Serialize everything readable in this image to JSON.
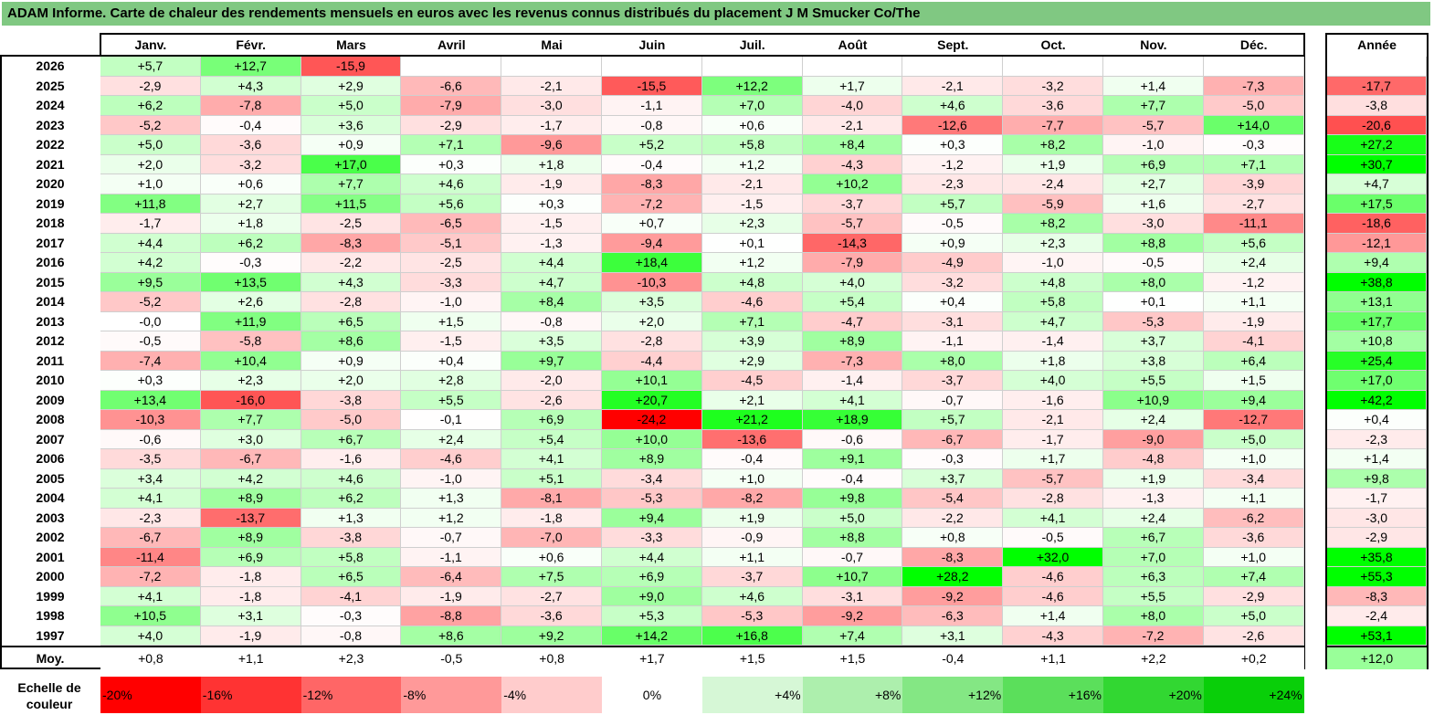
{
  "title": "ADAM Informe. Carte de chaleur des rendements mensuels en euros avec les revenus connus distribués du placement J M Smucker Co/The",
  "chart_data": {
    "type": "heatmap",
    "title": "ADAM Informe. Carte de chaleur des rendements mensuels en euros avec les revenus connus distribués du placement J M Smucker Co/The",
    "columns": [
      "Janv.",
      "Févr.",
      "Mars",
      "Avril",
      "Mai",
      "Juin",
      "Juil.",
      "Août",
      "Sept.",
      "Oct.",
      "Nov.",
      "Déc."
    ],
    "year_header": "Année",
    "rows": [
      {
        "year": "2026",
        "values": [
          "+5,7",
          "+12,7",
          "-15,9",
          "",
          "",
          "",
          "",
          "",
          "",
          "",
          "",
          ""
        ],
        "annual": ""
      },
      {
        "year": "2025",
        "values": [
          "-2,9",
          "+4,3",
          "+2,9",
          "-6,6",
          "-2,1",
          "-15,5",
          "+12,2",
          "+1,7",
          "-2,1",
          "-3,2",
          "+1,4",
          "-7,3"
        ],
        "annual": "-17,7"
      },
      {
        "year": "2024",
        "values": [
          "+6,2",
          "-7,8",
          "+5,0",
          "-7,9",
          "-3,0",
          "-1,1",
          "+7,0",
          "-4,0",
          "+4,6",
          "-3,6",
          "+7,7",
          "-5,0"
        ],
        "annual": "-3,8"
      },
      {
        "year": "2023",
        "values": [
          "-5,2",
          "-0,4",
          "+3,6",
          "-2,9",
          "-1,7",
          "-0,8",
          "+0,6",
          "-2,1",
          "-12,6",
          "-7,7",
          "-5,7",
          "+14,0"
        ],
        "annual": "-20,6"
      },
      {
        "year": "2022",
        "values": [
          "+5,0",
          "-3,6",
          "+0,9",
          "+7,1",
          "-9,6",
          "+5,2",
          "+5,8",
          "+8,4",
          "+0,3",
          "+8,2",
          "-1,0",
          "-0,3"
        ],
        "annual": "+27,2"
      },
      {
        "year": "2021",
        "values": [
          "+2,0",
          "-3,2",
          "+17,0",
          "+0,3",
          "+1,8",
          "-0,4",
          "+1,2",
          "-4,3",
          "-1,2",
          "+1,9",
          "+6,9",
          "+7,1"
        ],
        "annual": "+30,7"
      },
      {
        "year": "2020",
        "values": [
          "+1,0",
          "+0,6",
          "+7,7",
          "+4,6",
          "-1,9",
          "-8,3",
          "-2,1",
          "+10,2",
          "-2,3",
          "-2,4",
          "+2,7",
          "-3,9"
        ],
        "annual": "+4,7"
      },
      {
        "year": "2019",
        "values": [
          "+11,8",
          "+2,7",
          "+11,5",
          "+5,6",
          "+0,3",
          "-7,2",
          "-1,5",
          "-3,7",
          "+5,7",
          "-5,9",
          "+1,6",
          "-2,7"
        ],
        "annual": "+17,5"
      },
      {
        "year": "2018",
        "values": [
          "-1,7",
          "+1,8",
          "-2,5",
          "-6,5",
          "-1,5",
          "+0,7",
          "+2,3",
          "-5,7",
          "-0,5",
          "+8,2",
          "-3,0",
          "-11,1"
        ],
        "annual": "-18,6"
      },
      {
        "year": "2017",
        "values": [
          "+4,4",
          "+6,2",
          "-8,3",
          "-5,1",
          "-1,3",
          "-9,4",
          "+0,1",
          "-14,3",
          "+0,9",
          "+2,3",
          "+8,8",
          "+5,6"
        ],
        "annual": "-12,1"
      },
      {
        "year": "2016",
        "values": [
          "+4,2",
          "-0,3",
          "-2,2",
          "-2,5",
          "+4,4",
          "+18,4",
          "+1,2",
          "-7,9",
          "-4,9",
          "-1,0",
          "-0,5",
          "+2,4"
        ],
        "annual": "+9,4"
      },
      {
        "year": "2015",
        "values": [
          "+9,5",
          "+13,5",
          "+4,3",
          "-3,3",
          "+4,7",
          "-10,3",
          "+4,8",
          "+4,0",
          "-3,2",
          "+4,8",
          "+8,0",
          "-1,2"
        ],
        "annual": "+38,8"
      },
      {
        "year": "2014",
        "values": [
          "-5,2",
          "+2,6",
          "-2,8",
          "-1,0",
          "+8,4",
          "+3,5",
          "-4,6",
          "+5,4",
          "+0,4",
          "+5,8",
          "+0,1",
          "+1,1"
        ],
        "annual": "+13,1"
      },
      {
        "year": "2013",
        "values": [
          "-0,0",
          "+11,9",
          "+6,5",
          "+1,5",
          "-0,8",
          "+2,0",
          "+7,1",
          "-4,7",
          "-3,1",
          "+4,7",
          "-5,3",
          "-1,9"
        ],
        "annual": "+17,7"
      },
      {
        "year": "2012",
        "values": [
          "-0,5",
          "-5,8",
          "+8,6",
          "-1,5",
          "+3,5",
          "-2,8",
          "+3,9",
          "+8,9",
          "-1,1",
          "-1,4",
          "+3,7",
          "-4,1"
        ],
        "annual": "+10,8"
      },
      {
        "year": "2011",
        "values": [
          "-7,4",
          "+10,4",
          "+0,9",
          "+0,4",
          "+9,7",
          "-4,4",
          "+2,9",
          "-7,3",
          "+8,0",
          "+1,8",
          "+3,8",
          "+6,4"
        ],
        "annual": "+25,4"
      },
      {
        "year": "2010",
        "values": [
          "+0,3",
          "+2,3",
          "+2,0",
          "+2,8",
          "-2,0",
          "+10,1",
          "-4,5",
          "-1,4",
          "-3,7",
          "+4,0",
          "+5,5",
          "+1,5"
        ],
        "annual": "+17,0"
      },
      {
        "year": "2009",
        "values": [
          "+13,4",
          "-16,0",
          "-3,8",
          "+5,5",
          "-2,6",
          "+20,7",
          "+2,1",
          "+4,1",
          "-0,7",
          "-1,6",
          "+10,9",
          "+9,4"
        ],
        "annual": "+42,2"
      },
      {
        "year": "2008",
        "values": [
          "-10,3",
          "+7,7",
          "-5,0",
          "-0,1",
          "+6,9",
          "-24,2",
          "+21,2",
          "+18,9",
          "+5,7",
          "-2,1",
          "+2,4",
          "-12,7"
        ],
        "annual": "+0,4"
      },
      {
        "year": "2007",
        "values": [
          "-0,6",
          "+3,0",
          "+6,7",
          "+2,4",
          "+5,4",
          "+10,0",
          "-13,6",
          "-0,6",
          "-6,7",
          "-1,7",
          "-9,0",
          "+5,0"
        ],
        "annual": "-2,3"
      },
      {
        "year": "2006",
        "values": [
          "-3,5",
          "-6,7",
          "-1,6",
          "-4,6",
          "+4,1",
          "+8,9",
          "-0,4",
          "+9,1",
          "-0,3",
          "+1,7",
          "-4,8",
          "+1,0"
        ],
        "annual": "+1,4"
      },
      {
        "year": "2005",
        "values": [
          "+3,4",
          "+4,2",
          "+4,6",
          "-1,0",
          "+5,1",
          "-3,4",
          "+1,0",
          "-0,4",
          "+3,7",
          "-5,7",
          "+1,9",
          "-3,4"
        ],
        "annual": "+9,8"
      },
      {
        "year": "2004",
        "values": [
          "+4,1",
          "+8,9",
          "+6,2",
          "+1,3",
          "-8,1",
          "-5,3",
          "-8,2",
          "+9,8",
          "-5,4",
          "-2,8",
          "-1,3",
          "+1,1"
        ],
        "annual": "-1,7"
      },
      {
        "year": "2003",
        "values": [
          "-2,3",
          "-13,7",
          "+1,3",
          "+1,2",
          "-1,8",
          "+9,4",
          "+1,9",
          "+5,0",
          "-2,2",
          "+4,1",
          "+2,4",
          "-6,2"
        ],
        "annual": "-3,0"
      },
      {
        "year": "2002",
        "values": [
          "-6,7",
          "+8,9",
          "-3,8",
          "-0,7",
          "-7,0",
          "-3,3",
          "-0,9",
          "+8,8",
          "+0,8",
          "-0,5",
          "+6,7",
          "-3,6"
        ],
        "annual": "-2,9"
      },
      {
        "year": "2001",
        "values": [
          "-11,4",
          "+6,9",
          "+5,8",
          "-1,1",
          "+0,6",
          "+4,4",
          "+1,1",
          "-0,7",
          "-8,3",
          "+32,0",
          "+7,0",
          "+1,0"
        ],
        "annual": "+35,8"
      },
      {
        "year": "2000",
        "values": [
          "-7,2",
          "-1,8",
          "+6,5",
          "-6,4",
          "+7,5",
          "+6,9",
          "-3,7",
          "+10,7",
          "+28,2",
          "-4,6",
          "+6,3",
          "+7,4"
        ],
        "annual": "+55,3"
      },
      {
        "year": "1999",
        "values": [
          "+4,1",
          "-1,8",
          "-4,1",
          "-1,9",
          "-2,7",
          "+9,0",
          "+4,6",
          "-3,1",
          "-9,2",
          "-4,6",
          "+5,5",
          "-2,9"
        ],
        "annual": "-8,3"
      },
      {
        "year": "1998",
        "values": [
          "+10,5",
          "+3,1",
          "-0,3",
          "-8,8",
          "-3,6",
          "+5,3",
          "-5,3",
          "-9,2",
          "-6,3",
          "+1,4",
          "+8,0",
          "+5,0"
        ],
        "annual": "-2,4"
      },
      {
        "year": "1997",
        "values": [
          "+4,0",
          "-1,9",
          "-0,8",
          "+8,6",
          "+9,2",
          "+14,2",
          "+16,8",
          "+7,4",
          "+3,1",
          "-4,3",
          "-7,2",
          "-2,6"
        ],
        "annual": "+53,1"
      }
    ],
    "average": {
      "label": "Moy.",
      "values": [
        "+0,8",
        "+1,1",
        "+2,3",
        "-0,5",
        "+0,8",
        "+1,7",
        "+1,5",
        "+1,5",
        "-0,4",
        "+1,1",
        "+2,2",
        "+0,2"
      ],
      "annual": "+12,0"
    },
    "scale": {
      "label": "Echelle de couleur",
      "steps": [
        {
          "text": "-20%",
          "value": -20,
          "color": "#ff0000"
        },
        {
          "text": "-16%",
          "value": -16,
          "color": "#ff3333"
        },
        {
          "text": "-12%",
          "value": -12,
          "color": "#ff6666"
        },
        {
          "text": "-8%",
          "value": -8,
          "color": "#ff9999"
        },
        {
          "text": "-4%",
          "value": -4,
          "color": "#ffcccc"
        },
        {
          "text": "0%",
          "value": 0,
          "color": "#ffffff"
        },
        {
          "text": "+4%",
          "value": 4,
          "color": "#d6f7d6"
        },
        {
          "text": "+8%",
          "value": 8,
          "color": "#adefad"
        },
        {
          "text": "+12%",
          "value": 12,
          "color": "#84e784"
        },
        {
          "text": "+16%",
          "value": 16,
          "color": "#5bdf5b"
        },
        {
          "text": "+20%",
          "value": 20,
          "color": "#32d732"
        },
        {
          "text": "+24%",
          "value": 24,
          "color": "#09cf09"
        }
      ]
    }
  },
  "colors": {
    "title_bg": "#80c882",
    "negative_max": "#ff0000",
    "positive_max": "#00ff00",
    "neutral": "#ffffff"
  }
}
